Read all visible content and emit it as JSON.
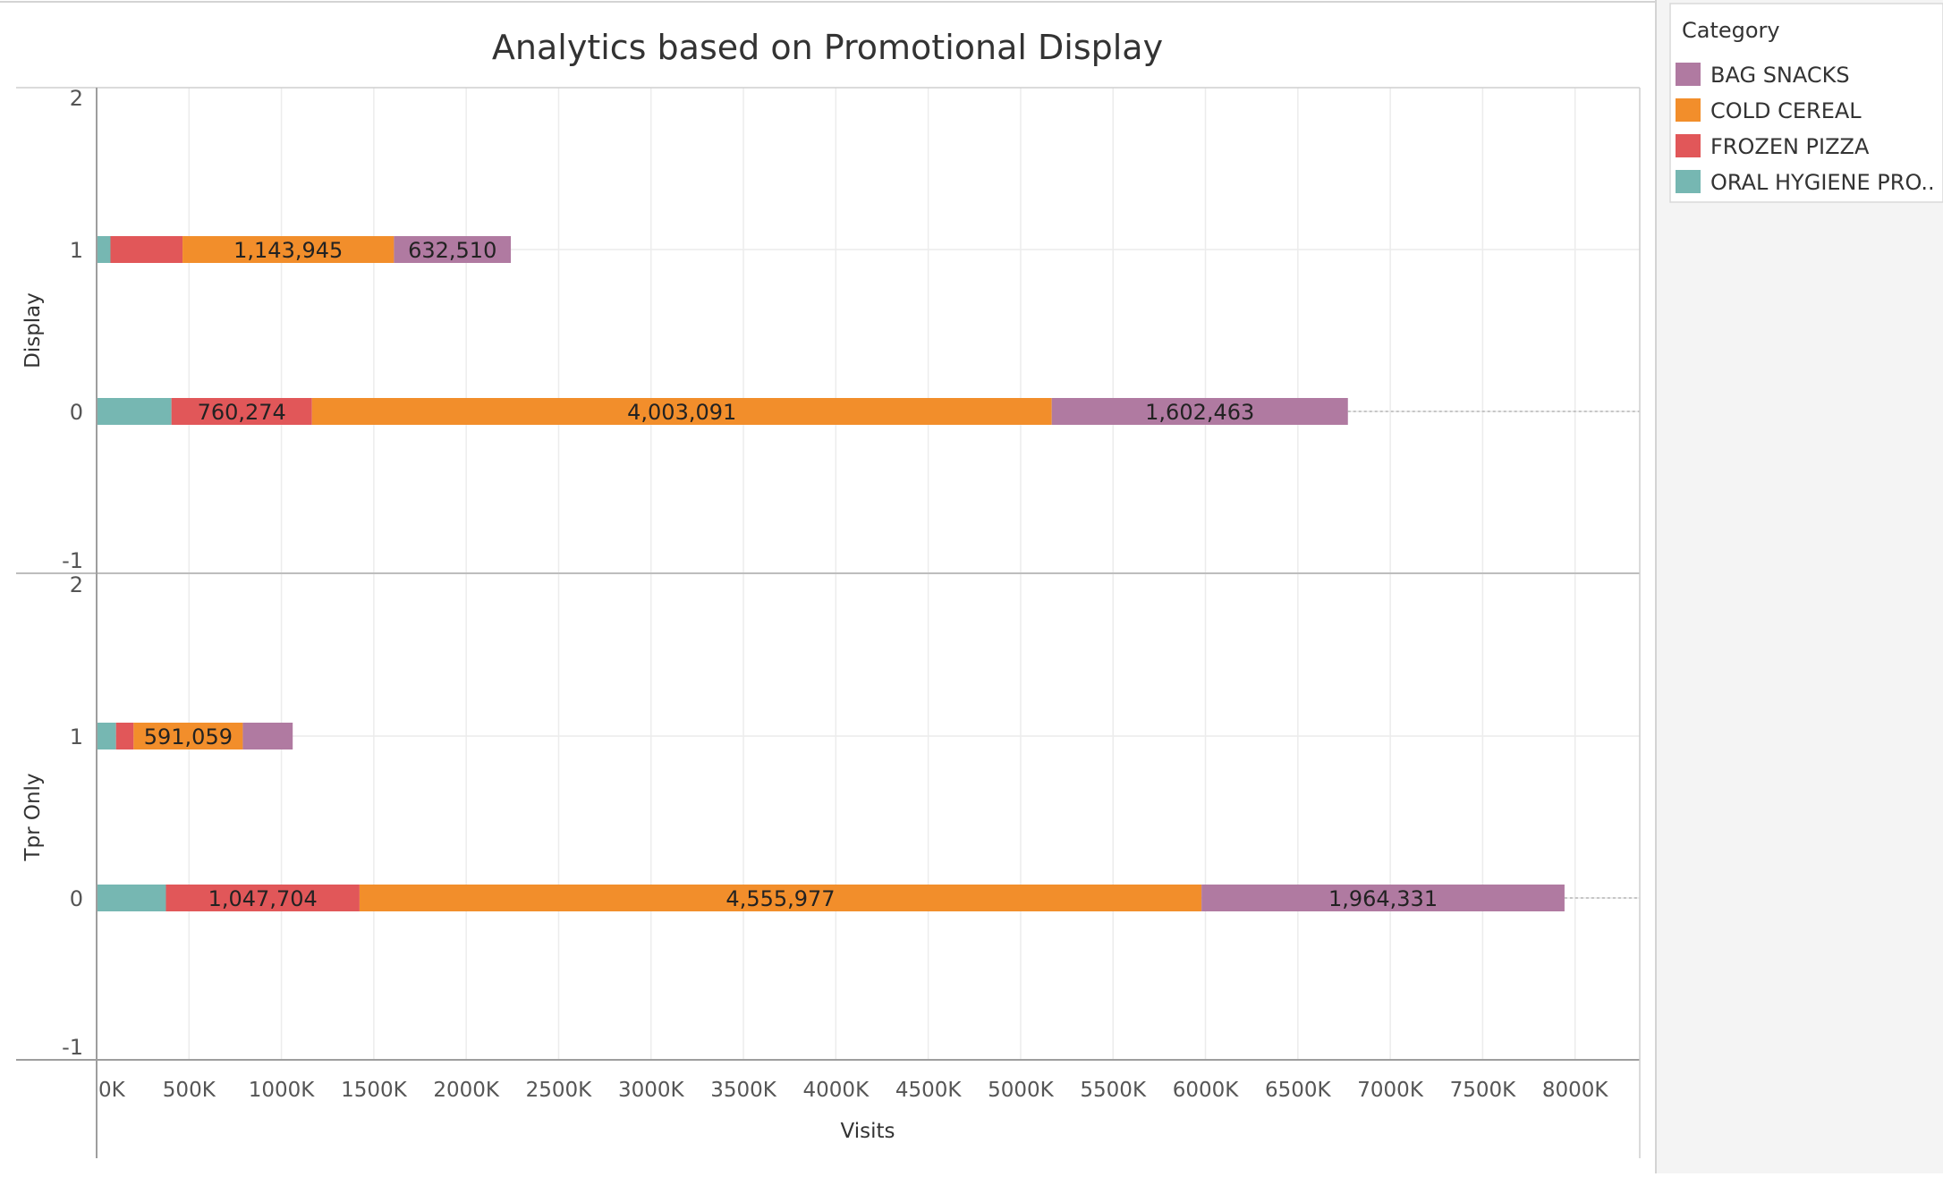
{
  "chart_data": {
    "type": "bar",
    "orientation": "horizontal",
    "stacked": true,
    "title": "Analytics based on Promotional Display",
    "xlabel": "Visits",
    "xlim": [
      0,
      8350000
    ],
    "x_ticks": [
      0,
      500000,
      1000000,
      1500000,
      2000000,
      2500000,
      3000000,
      3500000,
      4000000,
      4500000,
      5000000,
      5500000,
      6000000,
      6500000,
      7000000,
      7500000,
      8000000
    ],
    "x_tick_labels": [
      "0K",
      "500K",
      "1000K",
      "1500K",
      "2000K",
      "2500K",
      "3000K",
      "3500K",
      "4000K",
      "4500K",
      "5000K",
      "5500K",
      "6000K",
      "6500K",
      "7000K",
      "7500K",
      "8000K"
    ],
    "ylim": [
      -1,
      2
    ],
    "y_ticks": [
      2,
      1,
      0,
      -1
    ],
    "y_tick_labels": [
      "2",
      "1",
      "0",
      "-1"
    ],
    "grid": true,
    "legend": {
      "title": "Category",
      "position": "right",
      "items": [
        {
          "name": "BAG SNACKS",
          "color": "#b07aa1"
        },
        {
          "name": "COLD CEREAL",
          "color": "#f28e2b"
        },
        {
          "name": "FROZEN PIZZA",
          "color": "#e15759"
        },
        {
          "name": "ORAL HYGIENE PRO..",
          "color": "#76b7b2"
        }
      ]
    },
    "stack_order": [
      "ORAL HYGIENE PRO..",
      "FROZEN PIZZA",
      "COLD CEREAL",
      "BAG SNACKS"
    ],
    "panels": [
      {
        "label": "Display",
        "bars": [
          {
            "y": 1,
            "segments": [
              {
                "category": "ORAL HYGIENE PRO..",
                "value": 75000,
                "label": ""
              },
              {
                "category": "FROZEN PIZZA",
                "value": 390000,
                "label": ""
              },
              {
                "category": "COLD CEREAL",
                "value": 1143945,
                "label": "1,143,945"
              },
              {
                "category": "BAG SNACKS",
                "value": 632510,
                "label": "632,510"
              }
            ]
          },
          {
            "y": 0,
            "segments": [
              {
                "category": "ORAL HYGIENE PRO..",
                "value": 405000,
                "label": ""
              },
              {
                "category": "FROZEN PIZZA",
                "value": 760274,
                "label": "760,274"
              },
              {
                "category": "COLD CEREAL",
                "value": 4003091,
                "label": "4,003,091"
              },
              {
                "category": "BAG SNACKS",
                "value": 1602463,
                "label": "1,602,463"
              }
            ]
          }
        ]
      },
      {
        "label": "Tpr Only",
        "bars": [
          {
            "y": 1,
            "segments": [
              {
                "category": "ORAL HYGIENE PRO..",
                "value": 105000,
                "label": ""
              },
              {
                "category": "FROZEN PIZZA",
                "value": 95000,
                "label": ""
              },
              {
                "category": "COLD CEREAL",
                "value": 591059,
                "label": "591,059"
              },
              {
                "category": "BAG SNACKS",
                "value": 270000,
                "label": ""
              }
            ]
          },
          {
            "y": 0,
            "segments": [
              {
                "category": "ORAL HYGIENE PRO..",
                "value": 375000,
                "label": ""
              },
              {
                "category": "FROZEN PIZZA",
                "value": 1047704,
                "label": "1,047,704"
              },
              {
                "category": "COLD CEREAL",
                "value": 4555977,
                "label": "4,555,977"
              },
              {
                "category": "BAG SNACKS",
                "value": 1964331,
                "label": "1,964,331"
              }
            ]
          }
        ]
      }
    ]
  }
}
